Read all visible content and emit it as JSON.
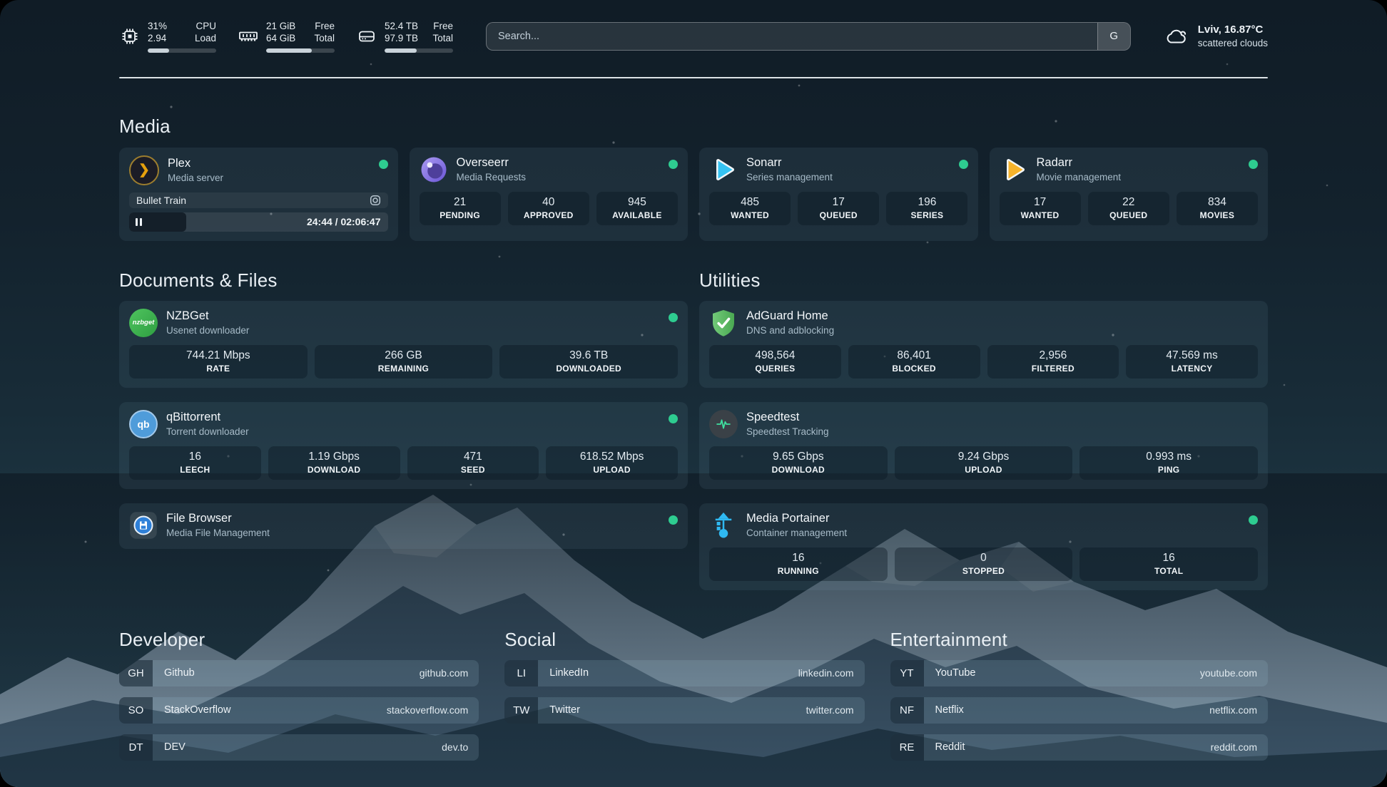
{
  "colors": {
    "background_top": "#101c26",
    "background_bottom": "#274554",
    "card_background": "rgba(140,185,207,0.09)",
    "status_online": "#2ecc90",
    "plex_accent": "#e5a00d",
    "sonarr_accent": "#35c3f2",
    "radarr_accent": "#f6b32b",
    "adguard_accent": "#5cbb64",
    "portainer_accent": "#2fb9f2",
    "divider": "#eef3f6"
  },
  "topbar": {
    "resources": [
      {
        "icon": "cpu-icon",
        "value_top": "31%",
        "value_bottom": "2.94",
        "label_top": "CPU",
        "label_bottom": "Load",
        "progress_pct": 31
      },
      {
        "icon": "memory-icon",
        "value_top": "21 GiB",
        "value_bottom": "64 GiB",
        "label_top": "Free",
        "label_bottom": "Total",
        "progress_pct": 67
      },
      {
        "icon": "disk-icon",
        "value_top": "52.4 TB",
        "value_bottom": "97.9 TB",
        "label_top": "Free",
        "label_bottom": "Total",
        "progress_pct": 47
      }
    ],
    "search": {
      "placeholder": "Search...",
      "provider_button": "G"
    },
    "weather": {
      "icon": "cloud-icon",
      "location": "Lviv, 16.87°C",
      "condition": "scattered clouds"
    }
  },
  "media": {
    "title": "Media",
    "services": [
      {
        "name": "Plex",
        "subtitle": "Media server",
        "icon": "plex-icon",
        "status_dot": true,
        "now_playing": {
          "title": "Bullet Train",
          "elapsed": "24:44",
          "duration": "02:06:47",
          "time_display": "24:44 / 02:06:47",
          "progress_pct": 19.5
        }
      },
      {
        "name": "Overseerr",
        "subtitle": "Media Requests",
        "icon": "overseerr-icon",
        "status_dot": true,
        "stats": [
          {
            "value": "21",
            "label": "PENDING"
          },
          {
            "value": "40",
            "label": "APPROVED"
          },
          {
            "value": "945",
            "label": "AVAILABLE"
          }
        ]
      },
      {
        "name": "Sonarr",
        "subtitle": "Series management",
        "icon": "sonarr-icon",
        "status_dot": true,
        "stats": [
          {
            "value": "485",
            "label": "WANTED"
          },
          {
            "value": "17",
            "label": "QUEUED"
          },
          {
            "value": "196",
            "label": "SERIES"
          }
        ]
      },
      {
        "name": "Radarr",
        "subtitle": "Movie management",
        "icon": "radarr-icon",
        "status_dot": true,
        "stats": [
          {
            "value": "17",
            "label": "WANTED"
          },
          {
            "value": "22",
            "label": "QUEUED"
          },
          {
            "value": "834",
            "label": "MOVIES"
          }
        ]
      }
    ]
  },
  "documents": {
    "title": "Documents & Files",
    "services": [
      {
        "name": "NZBGet",
        "subtitle": "Usenet downloader",
        "icon": "nzbget-icon",
        "status_dot": true,
        "stats": [
          {
            "value": "744.21 Mbps",
            "label": "RATE"
          },
          {
            "value": "266 GB",
            "label": "REMAINING"
          },
          {
            "value": "39.6 TB",
            "label": "DOWNLOADED"
          }
        ]
      },
      {
        "name": "qBittorrent",
        "subtitle": "Torrent downloader",
        "icon": "qbittorrent-icon",
        "status_dot": true,
        "stats": [
          {
            "value": "16",
            "label": "LEECH"
          },
          {
            "value": "1.19 Gbps",
            "label": "DOWNLOAD"
          },
          {
            "value": "471",
            "label": "SEED"
          },
          {
            "value": "618.52 Mbps",
            "label": "UPLOAD"
          }
        ]
      },
      {
        "name": "File Browser",
        "subtitle": "Media File Management",
        "icon": "filebrowser-icon",
        "status_dot": true
      }
    ]
  },
  "utilities": {
    "title": "Utilities",
    "services": [
      {
        "name": "AdGuard Home",
        "subtitle": "DNS and adblocking",
        "icon": "adguard-icon",
        "status_dot": false,
        "stats": [
          {
            "value": "498,564",
            "label": "QUERIES"
          },
          {
            "value": "86,401",
            "label": "BLOCKED"
          },
          {
            "value": "2,956",
            "label": "FILTERED"
          },
          {
            "value": "47.569 ms",
            "label": "LATENCY"
          }
        ]
      },
      {
        "name": "Speedtest",
        "subtitle": "Speedtest Tracking",
        "icon": "speedtest-icon",
        "status_dot": false,
        "stats": [
          {
            "value": "9.65 Gbps",
            "label": "DOWNLOAD"
          },
          {
            "value": "9.24 Gbps",
            "label": "UPLOAD"
          },
          {
            "value": "0.993 ms",
            "label": "PING"
          }
        ]
      },
      {
        "name": "Media Portainer",
        "subtitle": "Container management",
        "icon": "portainer-icon",
        "status_dot": true,
        "stats": [
          {
            "value": "16",
            "label": "RUNNING"
          },
          {
            "value": "0",
            "label": "STOPPED"
          },
          {
            "value": "16",
            "label": "TOTAL"
          }
        ]
      }
    ]
  },
  "bookmarks": {
    "groups": [
      {
        "title": "Developer",
        "items": [
          {
            "abbr": "GH",
            "name": "Github",
            "url": "github.com"
          },
          {
            "abbr": "SO",
            "name": "StackOverflow",
            "url": "stackoverflow.com"
          },
          {
            "abbr": "DT",
            "name": "DEV",
            "url": "dev.to"
          }
        ]
      },
      {
        "title": "Social",
        "items": [
          {
            "abbr": "LI",
            "name": "LinkedIn",
            "url": "linkedin.com"
          },
          {
            "abbr": "TW",
            "name": "Twitter",
            "url": "twitter.com"
          }
        ]
      },
      {
        "title": "Entertainment",
        "items": [
          {
            "abbr": "YT",
            "name": "YouTube",
            "url": "youtube.com"
          },
          {
            "abbr": "NF",
            "name": "Netflix",
            "url": "netflix.com"
          },
          {
            "abbr": "RE",
            "name": "Reddit",
            "url": "reddit.com"
          }
        ]
      }
    ]
  }
}
